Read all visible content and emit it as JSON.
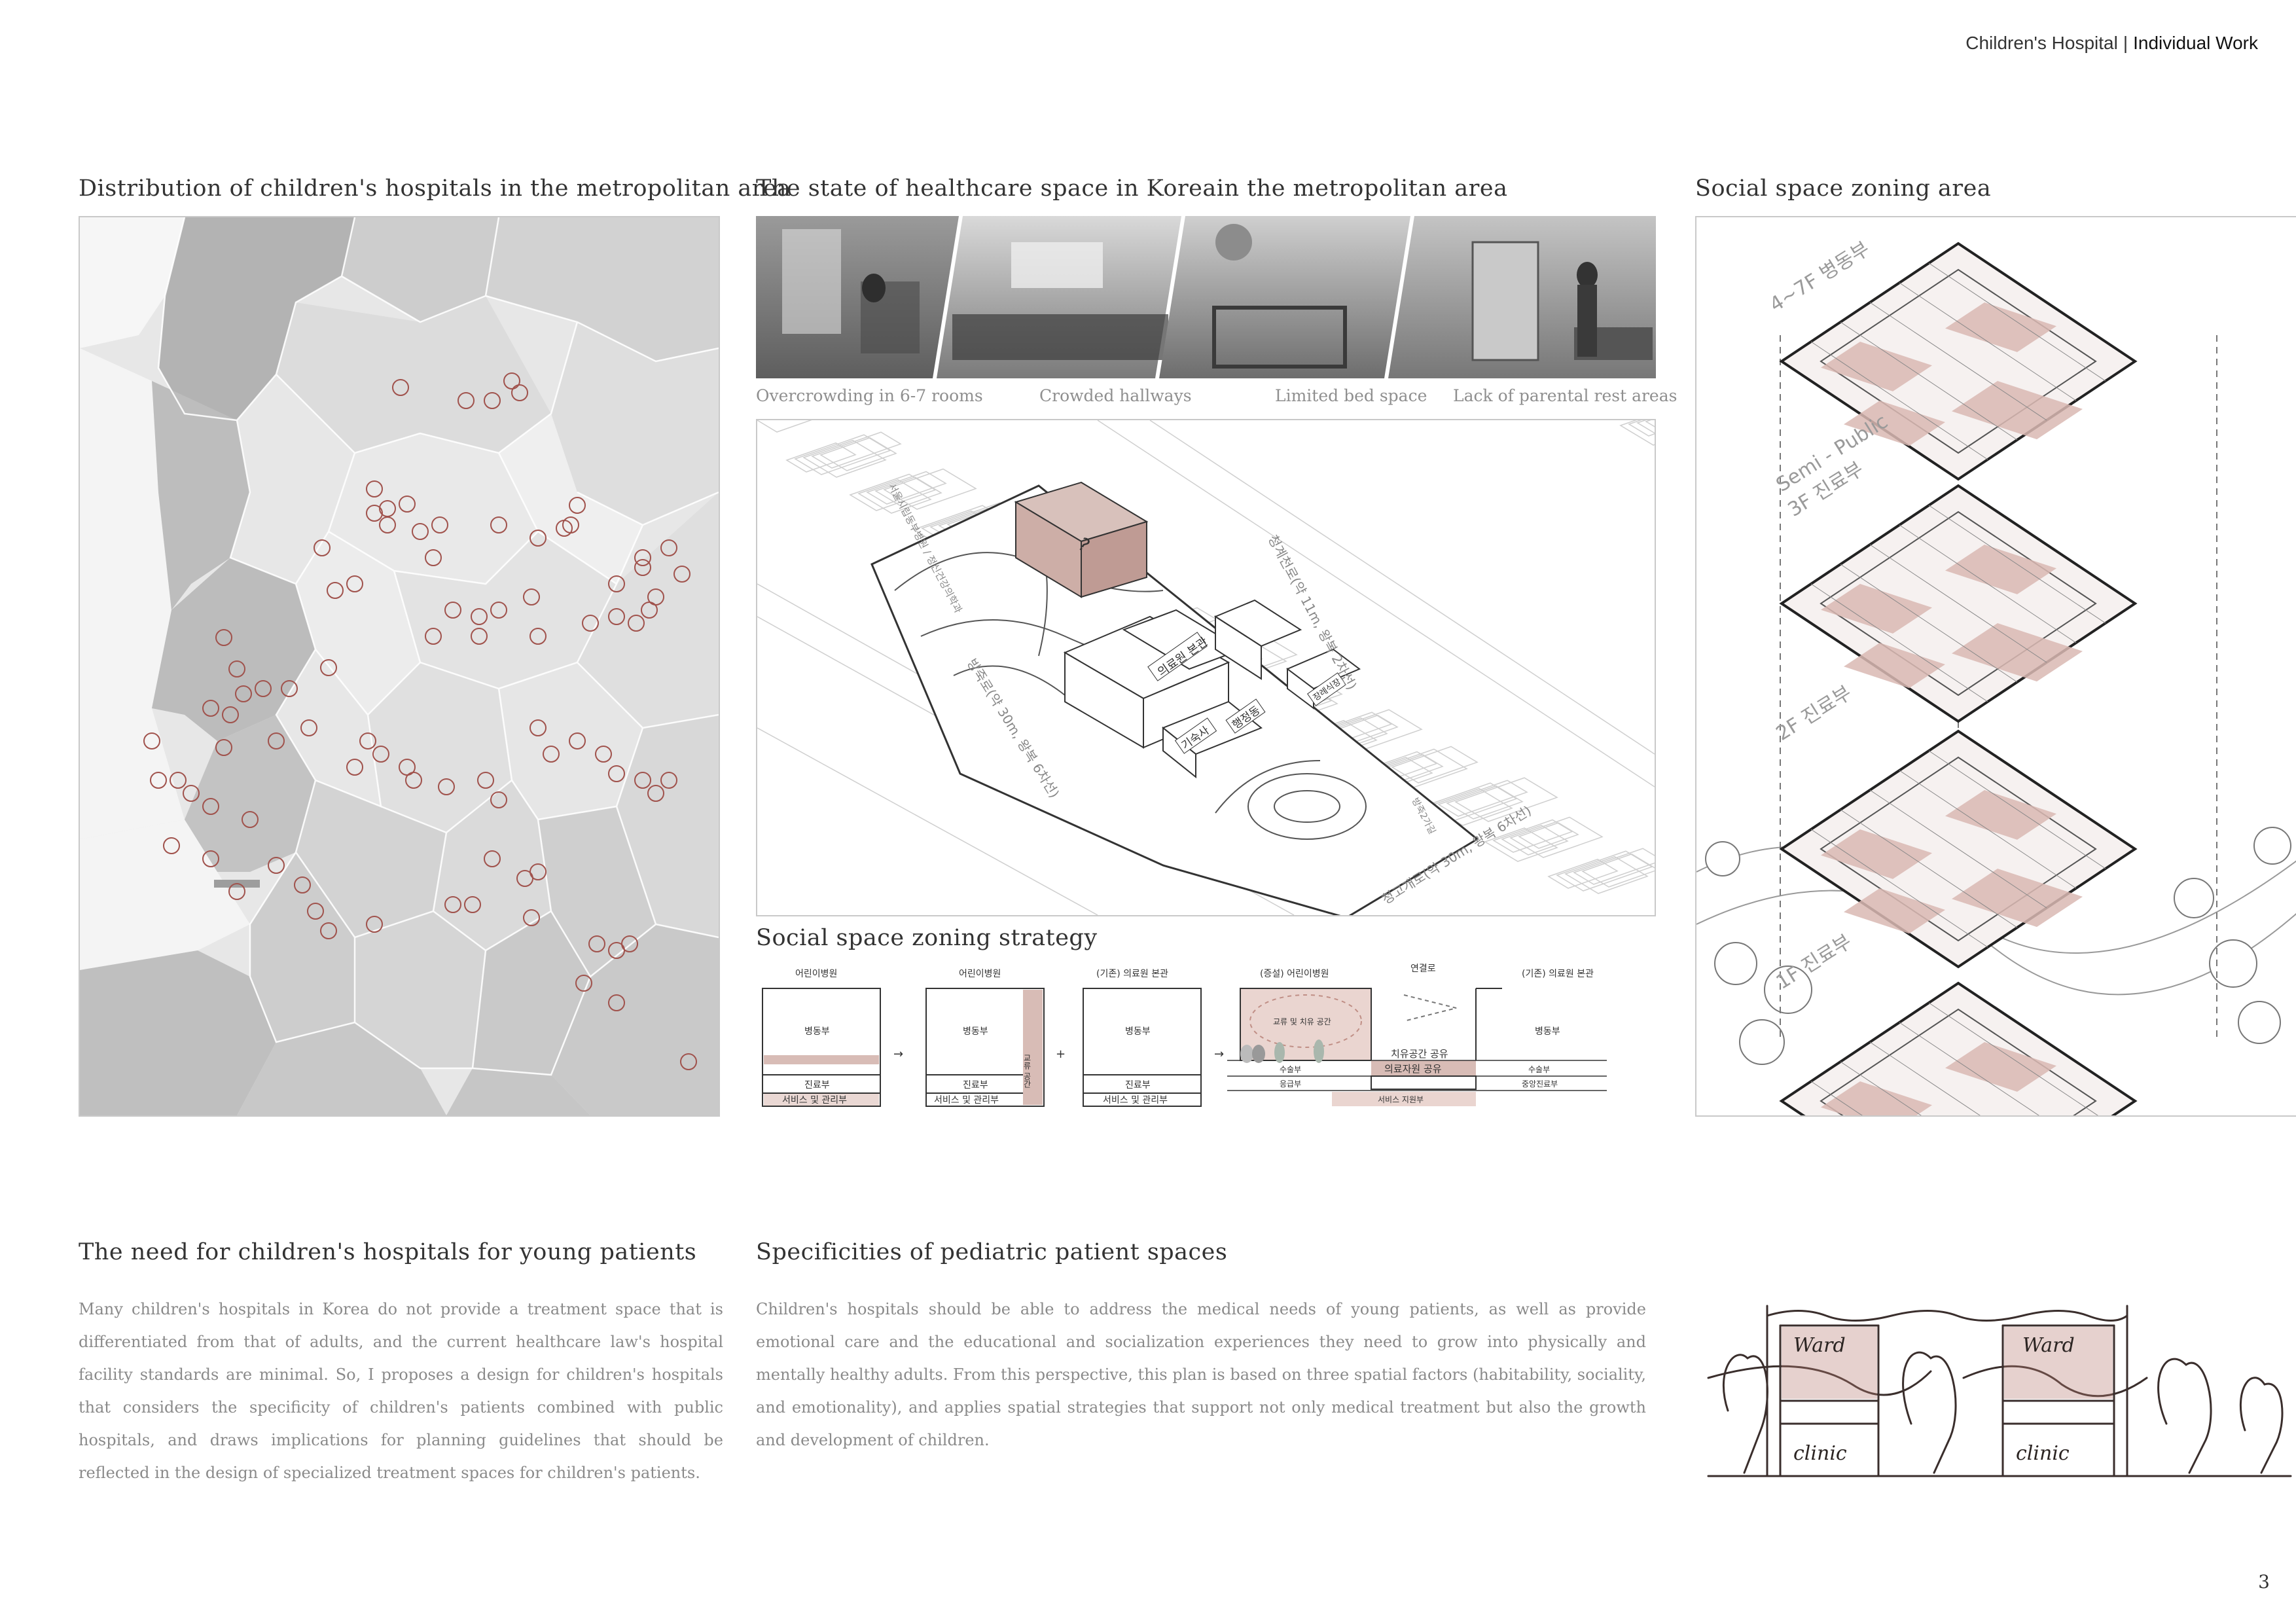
{
  "header": {
    "project": "Children's Hospital",
    "separator": "|",
    "type": "Individual Work"
  },
  "map_section": {
    "title": "Distribution of children's hospitals in the metropolitan area"
  },
  "healthcare_section": {
    "title": "The state of healthcare space in Koreain the metropolitan area",
    "photo_captions": [
      "Overcrowding in 6-7 rooms",
      "Crowded hallways",
      "Limited bed space",
      "Lack of parental rest areas"
    ],
    "site_labels": {
      "unknown_block": "?",
      "main_building": "의료원 본관",
      "admin": "행정동",
      "dorm": "기숙사",
      "funeral": "장례식장",
      "road_east": "청계천로(약 11m, 왕복 2차선)",
      "road_south": "청고개로(약 30m, 왕복 6차선)",
      "road_west": "방죽로(약 30m, 왕복 6차선)",
      "road_small": "방죽2가길",
      "road_north": "서울시립동부병원 / 정신건강의학과"
    }
  },
  "zoning_strategy": {
    "title": "Social space zoning strategy",
    "diagram1": {
      "title": "어린이병원",
      "top": "병동부",
      "mid": "진료부",
      "bottom": "서비스 및 관리부"
    },
    "diagram2": {
      "title": "어린이병원",
      "top": "병동부",
      "mid": "진료부",
      "bottom": "서비스 및 관리부",
      "side": "교류 공간"
    },
    "diagram3": {
      "title": "(기존) 의료원 본관",
      "top": "병동부",
      "mid": "진료부",
      "bottom": "서비스 및 관리부"
    },
    "plus": "+",
    "arrow": "→",
    "diagram4": {
      "left_title": "(증설) 어린이병원",
      "link": "연결로",
      "right_title": "(기존) 의료원 본관",
      "left_band": "교류 및 치유 공간",
      "right_top": "병동부",
      "heal_share": "치유공간 공유",
      "resource_share": "의료자원 공유",
      "left_row1": "수술부",
      "left_row2": "응급부",
      "right_row1": "수술부",
      "right_row2": "중앙진료부",
      "service": "서비스 지원부"
    }
  },
  "zoning_area": {
    "title": "Social space zoning area",
    "floors": [
      "4~7F 병동부",
      "Semi - Public\n3F 진료부",
      "2F 진료부",
      "1F 진료부"
    ]
  },
  "need_section": {
    "title": "The need for children's hospitals for young patients",
    "body": "Many children's hospitals in Korea do not provide a treatment space that is differentiated from that of adults, and the current healthcare law's hospital facility standards are minimal. So, I proposes a design for children's hospitals that considers the specificity of children's patients combined with public hospitals, and draws implications for planning guidelines that should be reflected in the design of specialized treatment spaces for children's patients."
  },
  "specificity_section": {
    "title": "Specificities of pediatric patient spaces",
    "body": "Children's hospitals should be able to address the medical needs of young patients, as well as provide emotional care and the educational and socialization experiences they need to grow into physically and mentally healthy adults. From this perspective, this plan is based on three spatial factors (habitability, sociality, and emotionality), and applies spatial strategies that support not only medical treatment but also the growth and development of children."
  },
  "sketch": {
    "ward": "Ward",
    "clinic": "clinic"
  },
  "page_number": "3",
  "colors": {
    "accent": "#a0524c",
    "zone_fill": "#d9b9b3",
    "map_gray": "#b9b9b9"
  }
}
